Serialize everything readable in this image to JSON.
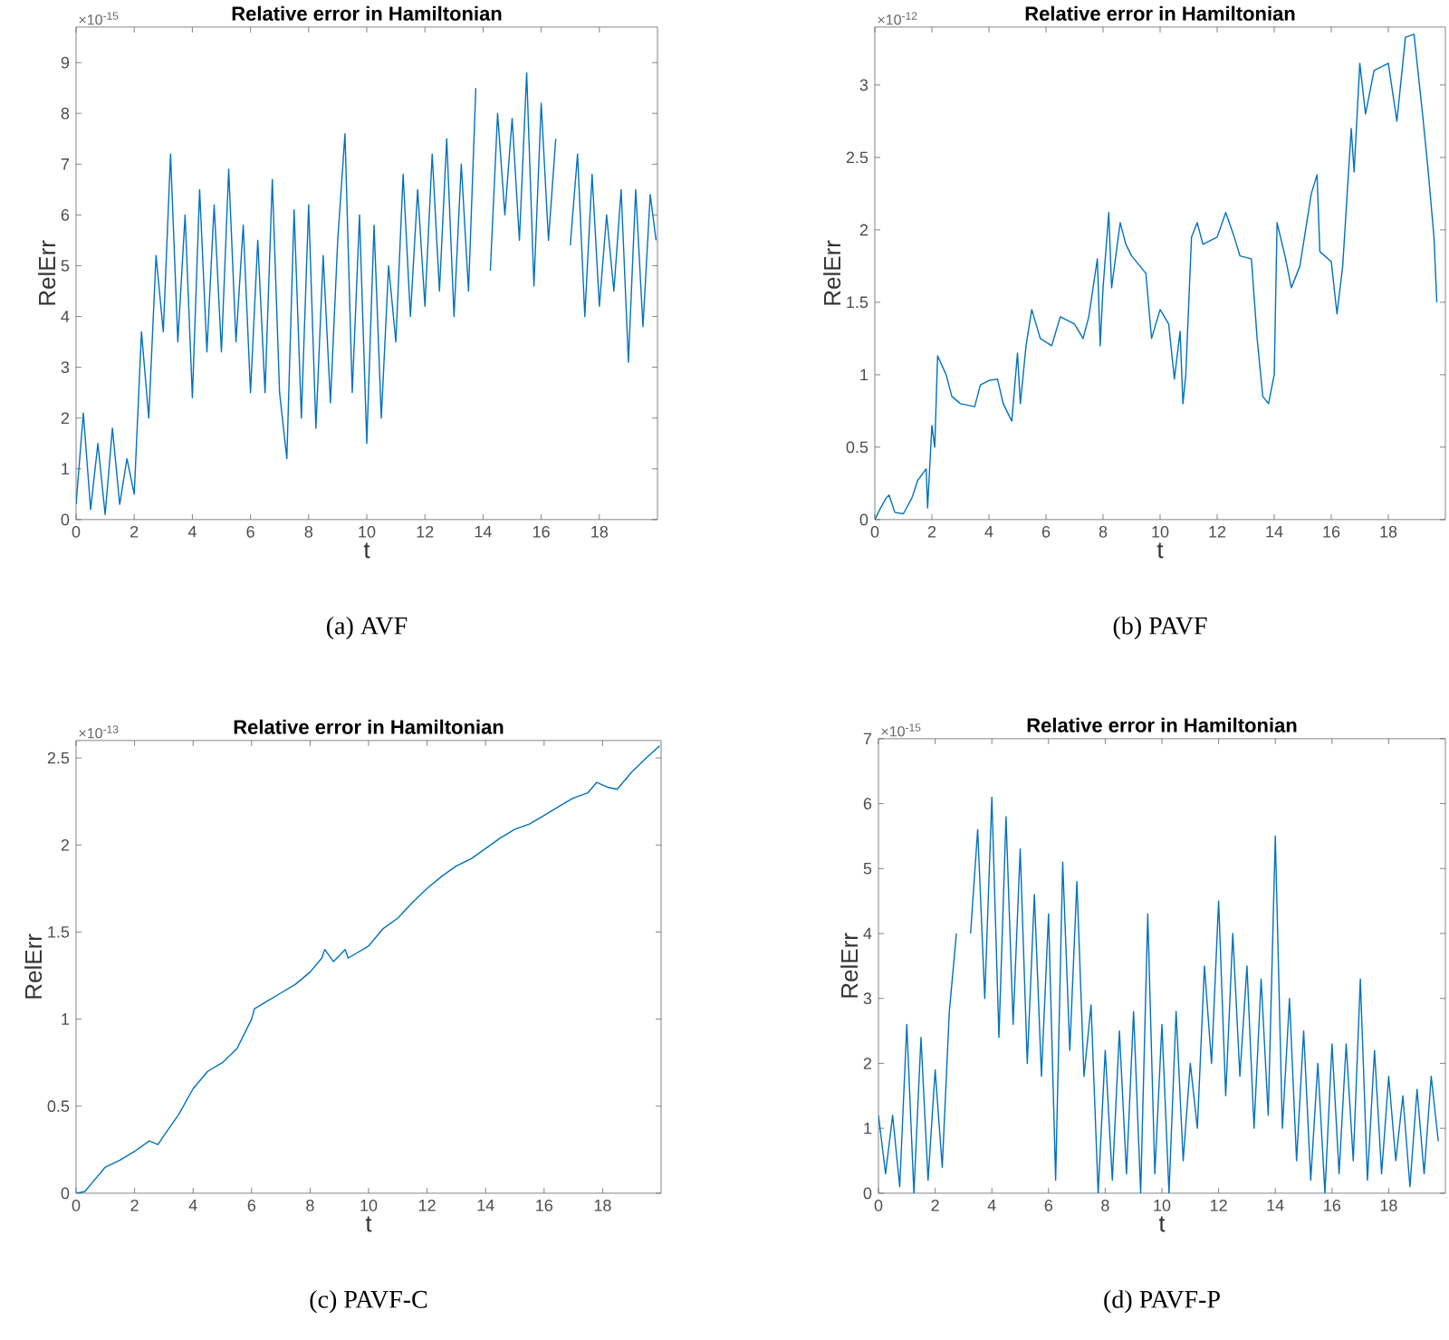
{
  "chart_data": [
    {
      "type": "line",
      "title": "Relative error in Hamiltonian",
      "xlabel": "t",
      "ylabel": "RelErr",
      "annotations": [
        "×10$^{-15}$",
        "(a)  AVF"
      ],
      "xlim": [
        0,
        20
      ],
      "ylim": [
        0,
        9.7
      ],
      "xticks": [
        0,
        2,
        4,
        6,
        8,
        10,
        12,
        14,
        16,
        18
      ],
      "yticks": [
        0,
        1,
        2,
        3,
        4,
        5,
        6,
        7,
        8,
        9
      ],
      "color": "#0072bd",
      "x": [
        0,
        0.25,
        0.5,
        0.75,
        1.0,
        1.25,
        1.5,
        1.75,
        2.0,
        2.25,
        2.5,
        2.75,
        3.0,
        3.25,
        3.5,
        3.75,
        4.0,
        4.25,
        4.5,
        4.75,
        5.0,
        5.25,
        5.5,
        5.75,
        6.0,
        6.25,
        6.5,
        6.75,
        7.0,
        7.25,
        7.5,
        7.75,
        8.0,
        8.25,
        8.5,
        8.75,
        9.0,
        9.25,
        9.5,
        9.75,
        10.0,
        10.25,
        10.5,
        10.75,
        11.0,
        11.25,
        11.5,
        11.75,
        12.0,
        12.25,
        12.5,
        12.75,
        13.0,
        13.25,
        13.5,
        13.75,
        14.0,
        14.25,
        14.5,
        14.75,
        15.0,
        15.25,
        15.5,
        15.75,
        16.0,
        16.25,
        16.5,
        16.75,
        17.0,
        17.25,
        17.5,
        17.75,
        18.0,
        18.25,
        18.5,
        18.75,
        19.0,
        19.25,
        19.5,
        19.75,
        19.95
      ],
      "values": [
        0.3,
        2.1,
        0.2,
        1.5,
        0.1,
        1.8,
        0.3,
        1.2,
        0.5,
        3.7,
        2.0,
        5.2,
        3.7,
        7.2,
        3.5,
        6.0,
        2.4,
        6.5,
        3.3,
        6.2,
        3.3,
        6.9,
        3.5,
        5.8,
        2.5,
        5.5,
        2.5,
        6.7,
        2.5,
        1.2,
        6.1,
        2.0,
        6.2,
        1.8,
        5.2,
        2.3,
        5.5,
        7.6,
        2.5,
        6.0,
        1.5,
        5.8,
        2.0,
        5.0,
        3.5,
        6.8,
        4.0,
        6.5,
        4.2,
        7.2,
        4.5,
        7.5,
        4.0,
        7.0,
        4.5,
        8.5,
        null,
        4.9,
        8.0,
        6.0,
        7.9,
        5.5,
        8.8,
        4.6,
        8.2,
        5.5,
        7.5,
        null,
        5.4,
        7.2,
        4.0,
        6.8,
        4.2,
        6.0,
        4.5,
        6.5,
        3.1,
        6.5,
        3.8,
        6.4,
        5.5
      ]
    },
    {
      "type": "line",
      "title": "Relative error in Hamiltonian",
      "xlabel": "t",
      "ylabel": "RelErr",
      "annotations": [
        "×10$^{-12}$",
        "(b)  PAVF"
      ],
      "xlim": [
        0,
        20
      ],
      "ylim": [
        0,
        3.4
      ],
      "xticks": [
        0,
        2,
        4,
        6,
        8,
        10,
        12,
        14,
        16,
        18
      ],
      "yticks": [
        0,
        0.5,
        1,
        1.5,
        2,
        2.5,
        3
      ],
      "color": "#0072bd",
      "x": [
        0,
        0.2,
        0.4,
        0.5,
        0.7,
        1.0,
        1.3,
        1.5,
        1.8,
        1.85,
        2.0,
        2.1,
        2.2,
        2.5,
        2.7,
        3.0,
        3.5,
        3.7,
        4.0,
        4.3,
        4.5,
        4.8,
        5.0,
        5.1,
        5.3,
        5.5,
        5.8,
        6.2,
        6.5,
        7.0,
        7.3,
        7.5,
        7.8,
        7.9,
        8.0,
        8.2,
        8.3,
        8.6,
        8.8,
        9.0,
        9.5,
        9.7,
        10.0,
        10.3,
        10.5,
        10.7,
        10.8,
        10.9,
        11.1,
        11.3,
        11.5,
        12.0,
        12.3,
        12.6,
        12.8,
        13.2,
        13.4,
        13.6,
        13.8,
        14.0,
        14.1,
        14.4,
        14.6,
        14.9,
        15.1,
        15.3,
        15.5,
        15.6,
        16.0,
        16.2,
        16.4,
        16.7,
        16.8,
        17.0,
        17.2,
        17.5,
        18.0,
        18.3,
        18.6,
        18.9,
        19.2,
        19.4,
        19.6,
        19.7
      ],
      "values": [
        0,
        0.08,
        0.15,
        0.17,
        0.05,
        0.04,
        0.15,
        0.27,
        0.35,
        0.08,
        0.65,
        0.5,
        1.13,
        1.0,
        0.85,
        0.8,
        0.78,
        0.93,
        0.96,
        0.97,
        0.8,
        0.68,
        1.15,
        0.8,
        1.2,
        1.45,
        1.25,
        1.2,
        1.4,
        1.35,
        1.25,
        1.4,
        1.8,
        1.2,
        1.6,
        2.12,
        1.6,
        2.05,
        1.9,
        1.82,
        1.7,
        1.25,
        1.45,
        1.35,
        0.97,
        1.3,
        0.8,
        1.0,
        1.95,
        2.05,
        1.9,
        1.95,
        2.12,
        1.95,
        1.82,
        1.8,
        1.25,
        0.85,
        0.8,
        1.0,
        2.05,
        1.8,
        1.6,
        1.75,
        2.0,
        2.25,
        2.38,
        1.85,
        1.78,
        1.42,
        1.75,
        2.7,
        2.4,
        3.15,
        2.8,
        3.1,
        3.15,
        2.75,
        3.33,
        3.35,
        2.8,
        2.4,
        1.95,
        1.5
      ]
    },
    {
      "type": "line",
      "title": "Relative error in Hamiltonian",
      "xlabel": "t",
      "ylabel": "RelErr",
      "annotations": [
        "×10$^{-13}$",
        "(c)  PAVF-C"
      ],
      "xlim": [
        0,
        20
      ],
      "ylim": [
        0,
        2.6
      ],
      "xticks": [
        0,
        2,
        4,
        6,
        8,
        10,
        12,
        14,
        16,
        18
      ],
      "yticks": [
        0,
        0.5,
        1,
        1.5,
        2,
        2.5
      ],
      "color": "#0072bd",
      "x": [
        0,
        0.3,
        0.6,
        1.0,
        1.5,
        2.0,
        2.5,
        2.8,
        3.0,
        3.5,
        4.0,
        4.5,
        5.0,
        5.5,
        6.0,
        6.1,
        6.5,
        7.0,
        7.5,
        8.0,
        8.4,
        8.5,
        8.8,
        9.2,
        9.3,
        10.0,
        10.5,
        11.0,
        11.5,
        12.0,
        12.5,
        13.0,
        13.5,
        14.0,
        14.5,
        15.0,
        15.5,
        16.0,
        16.5,
        17.0,
        17.5,
        17.8,
        18.2,
        18.5,
        19.0,
        19.5,
        19.95
      ],
      "values": [
        0,
        0.01,
        0.07,
        0.15,
        0.19,
        0.24,
        0.3,
        0.28,
        0.33,
        0.45,
        0.6,
        0.7,
        0.75,
        0.83,
        1.0,
        1.06,
        1.1,
        1.15,
        1.2,
        1.27,
        1.35,
        1.4,
        1.33,
        1.4,
        1.35,
        1.42,
        1.52,
        1.58,
        1.67,
        1.75,
        1.82,
        1.88,
        1.92,
        1.98,
        2.04,
        2.09,
        2.12,
        2.17,
        2.22,
        2.27,
        2.3,
        2.36,
        2.33,
        2.32,
        2.42,
        2.5,
        2.57
      ]
    },
    {
      "type": "line",
      "title": "Relative error in Hamiltonian",
      "xlabel": "t",
      "ylabel": "RelErr",
      "annotations": [
        "×10$^{-15}$",
        "(d)  PAVF-P"
      ],
      "xlim": [
        0,
        20
      ],
      "ylim": [
        0,
        7
      ],
      "xticks": [
        0,
        2,
        4,
        6,
        8,
        10,
        12,
        14,
        16,
        18
      ],
      "yticks": [
        0,
        1,
        2,
        3,
        4,
        5,
        6,
        7
      ],
      "color": "#0072bd",
      "x": [
        0,
        0.25,
        0.5,
        0.75,
        1.0,
        1.25,
        1.5,
        1.75,
        2.0,
        2.25,
        2.5,
        2.75,
        3.0,
        3.25,
        3.5,
        3.75,
        4.0,
        4.25,
        4.5,
        4.75,
        5.0,
        5.25,
        5.5,
        5.75,
        6.0,
        6.25,
        6.5,
        6.75,
        7.0,
        7.25,
        7.5,
        7.75,
        8.0,
        8.25,
        8.5,
        8.75,
        9.0,
        9.25,
        9.5,
        9.75,
        10.0,
        10.25,
        10.5,
        10.75,
        11.0,
        11.25,
        11.5,
        11.75,
        12.0,
        12.25,
        12.5,
        12.75,
        13.0,
        13.25,
        13.5,
        13.75,
        14.0,
        14.25,
        14.5,
        14.75,
        15.0,
        15.25,
        15.5,
        15.75,
        16.0,
        16.25,
        16.5,
        16.75,
        17.0,
        17.25,
        17.5,
        17.75,
        18.0,
        18.25,
        18.5,
        18.75,
        19.0,
        19.25,
        19.5,
        19.75
      ],
      "values": [
        1.2,
        0.3,
        1.2,
        0.1,
        2.6,
        0,
        2.4,
        0.2,
        1.9,
        0.4,
        2.8,
        4.0,
        null,
        4.0,
        5.6,
        3.0,
        6.1,
        2.4,
        5.8,
        2.6,
        5.3,
        2.0,
        4.6,
        1.8,
        4.3,
        0.2,
        5.1,
        2.2,
        4.8,
        1.8,
        2.9,
        0,
        2.2,
        0.2,
        2.5,
        0.3,
        2.8,
        0,
        4.3,
        0.3,
        2.6,
        0,
        2.8,
        0.5,
        2.0,
        1.0,
        3.5,
        2.0,
        4.5,
        1.5,
        4.0,
        1.8,
        3.5,
        1.0,
        3.3,
        1.2,
        5.5,
        1.0,
        3.0,
        0.5,
        2.5,
        0.2,
        2.0,
        0,
        2.3,
        0.3,
        2.3,
        0.5,
        3.3,
        0.2,
        2.2,
        0.3,
        1.8,
        0.5,
        1.5,
        0.1,
        1.6,
        0.3,
        1.8,
        0.8
      ]
    }
  ]
}
